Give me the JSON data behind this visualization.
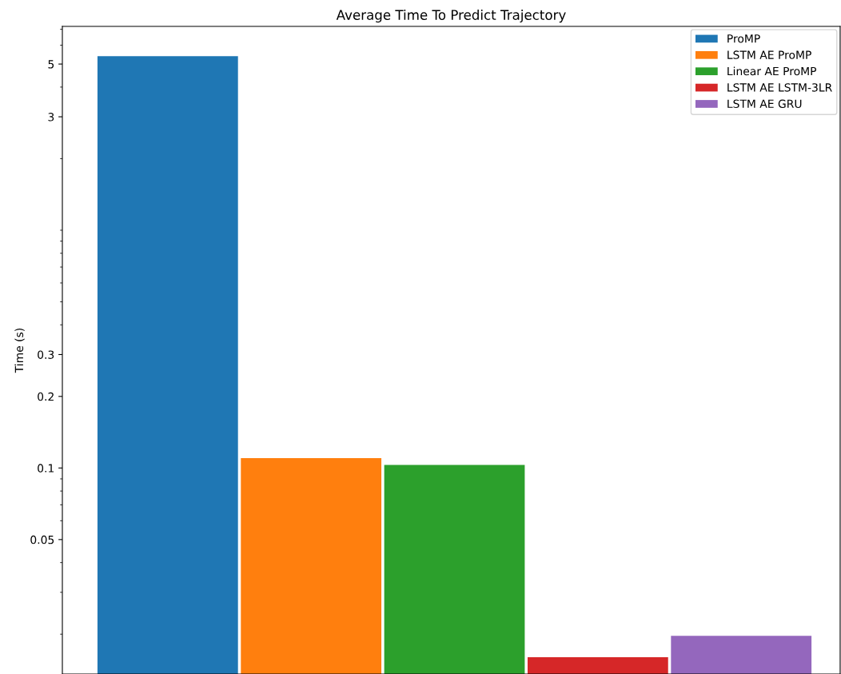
{
  "chart_data": {
    "type": "bar",
    "title": "Average Time To Predict Trajectory",
    "ylabel": "Time (s)",
    "categories": [
      null,
      null,
      null,
      null,
      null
    ],
    "series": [
      {
        "name": "ProMP",
        "color": "#1f77b4",
        "values": [
          5.4,
          null,
          null,
          null,
          null
        ]
      },
      {
        "name": "LSTM AE ProMP",
        "color": "#ff7f0e",
        "values": [
          null,
          0.11,
          null,
          null,
          null
        ]
      },
      {
        "name": "Linear AE ProMP",
        "color": "#2ca02c",
        "values": [
          null,
          null,
          0.103,
          null,
          null
        ]
      },
      {
        "name": "LSTM AE LSTM-3LR",
        "color": "#d62728",
        "values": [
          null,
          null,
          null,
          0.016,
          null
        ]
      },
      {
        "name": "LSTM AE GRU",
        "color": "#9467bd",
        "values": [
          null,
          null,
          null,
          null,
          0.0197
        ]
      }
    ],
    "log": "y",
    "ylim": [
      0.0136,
      7.2
    ],
    "yticks": [
      0.05,
      0.1,
      0.2,
      0.3,
      3,
      5
    ],
    "tick_labels": "y",
    "legend": "top right",
    "grid": false
  }
}
